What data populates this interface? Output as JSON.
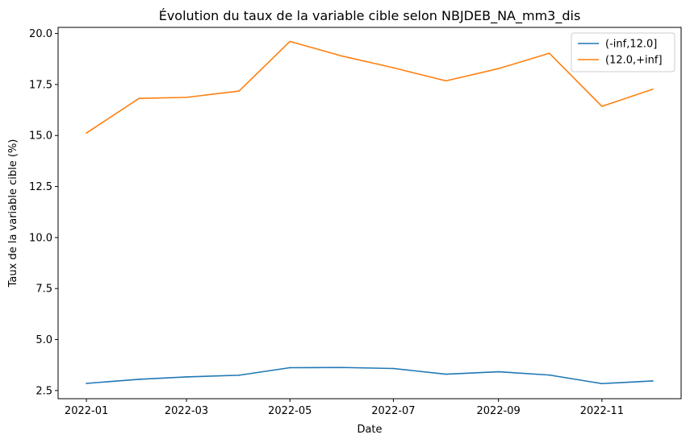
{
  "chart_data": {
    "type": "line",
    "title": "Évolution du taux de la variable cible selon NBJDEB_NA_mm3_dis",
    "xlabel": "Date",
    "ylabel": "Taux de la variable cible (%)",
    "x": [
      "2022-01-01",
      "2022-02-01",
      "2022-03-01",
      "2022-04-01",
      "2022-05-01",
      "2022-06-01",
      "2022-07-01",
      "2022-08-01",
      "2022-09-01",
      "2022-10-01",
      "2022-11-01",
      "2022-12-01"
    ],
    "xticks": [
      "2022-01",
      "2022-03",
      "2022-05",
      "2022-07",
      "2022-09",
      "2022-11"
    ],
    "yticks": [
      "2.5",
      "5.0",
      "7.5",
      "10.0",
      "12.5",
      "15.0",
      "17.5",
      "20.0"
    ],
    "ylim": [
      2.1,
      20.3
    ],
    "grid": false,
    "legend_position": "top-right",
    "series": [
      {
        "name": "(-inf,12.0]",
        "color": "#1f77b4",
        "values": [
          2.85,
          3.05,
          3.17,
          3.25,
          3.62,
          3.63,
          3.58,
          3.3,
          3.42,
          3.26,
          2.84,
          2.97
        ]
      },
      {
        "name": "(12.0,+inf]",
        "color": "#ff7f0e",
        "values": [
          15.12,
          16.82,
          16.87,
          17.18,
          19.61,
          18.89,
          18.32,
          17.68,
          18.28,
          19.03,
          16.43,
          17.27
        ]
      }
    ]
  }
}
